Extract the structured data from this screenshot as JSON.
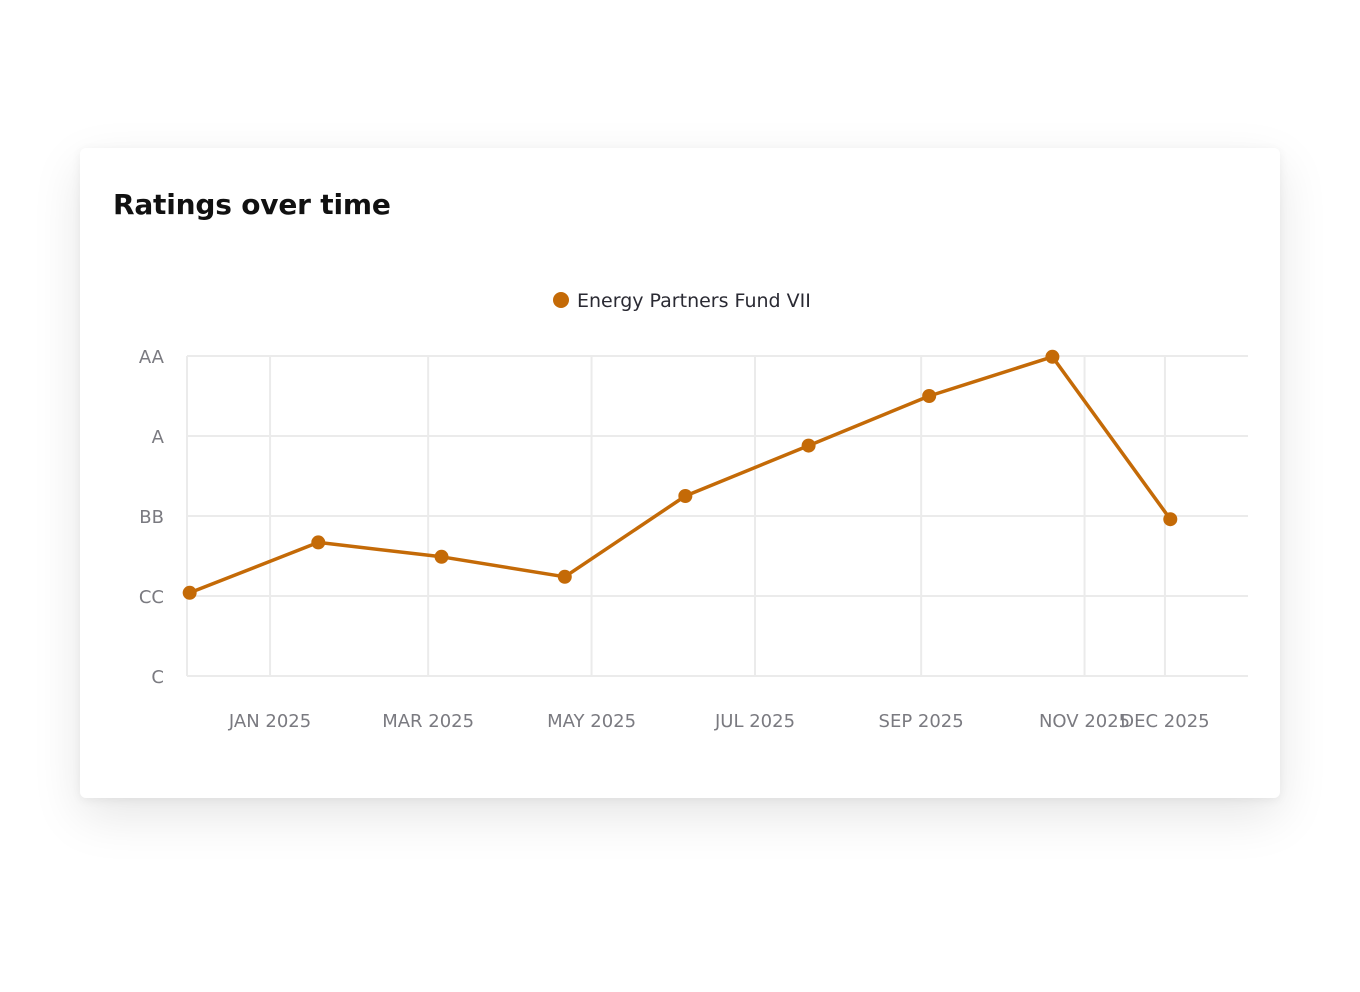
{
  "card": {
    "title": "Ratings over time"
  },
  "colors": {
    "series": "#C46A07",
    "grid": "#ebebeb",
    "tick": "#7a7a80"
  },
  "chart_data": {
    "type": "line",
    "title": "Ratings over time",
    "xlabel": "",
    "ylabel": "",
    "y_categories": [
      "C",
      "CC",
      "BB",
      "A",
      "AA"
    ],
    "x_ticks": [
      "JAN 2025",
      "MAR 2025",
      "MAY 2025",
      "JUL 2025",
      "SEP 2025",
      "NOV 2025",
      "DEC 2025"
    ],
    "x_range": [
      "2024-12-01",
      "2026-01-01"
    ],
    "x_tick_dates": [
      "2025-01-01",
      "2025-03-01",
      "2025-05-01",
      "2025-07-01",
      "2025-09-01",
      "2025-11-01",
      "2025-12-01"
    ],
    "grid": true,
    "legend_position": "top-center",
    "series": [
      {
        "name": "Energy Partners Fund VII",
        "color": "#C46A07",
        "x": [
          "2024-12-02",
          "2025-01-19",
          "2025-03-06",
          "2025-04-21",
          "2025-06-05",
          "2025-07-21",
          "2025-09-04",
          "2025-10-20",
          "2025-12-03"
        ],
        "y": [
          1.04,
          1.67,
          1.49,
          1.24,
          2.25,
          2.88,
          3.5,
          3.99,
          1.96
        ]
      }
    ]
  }
}
